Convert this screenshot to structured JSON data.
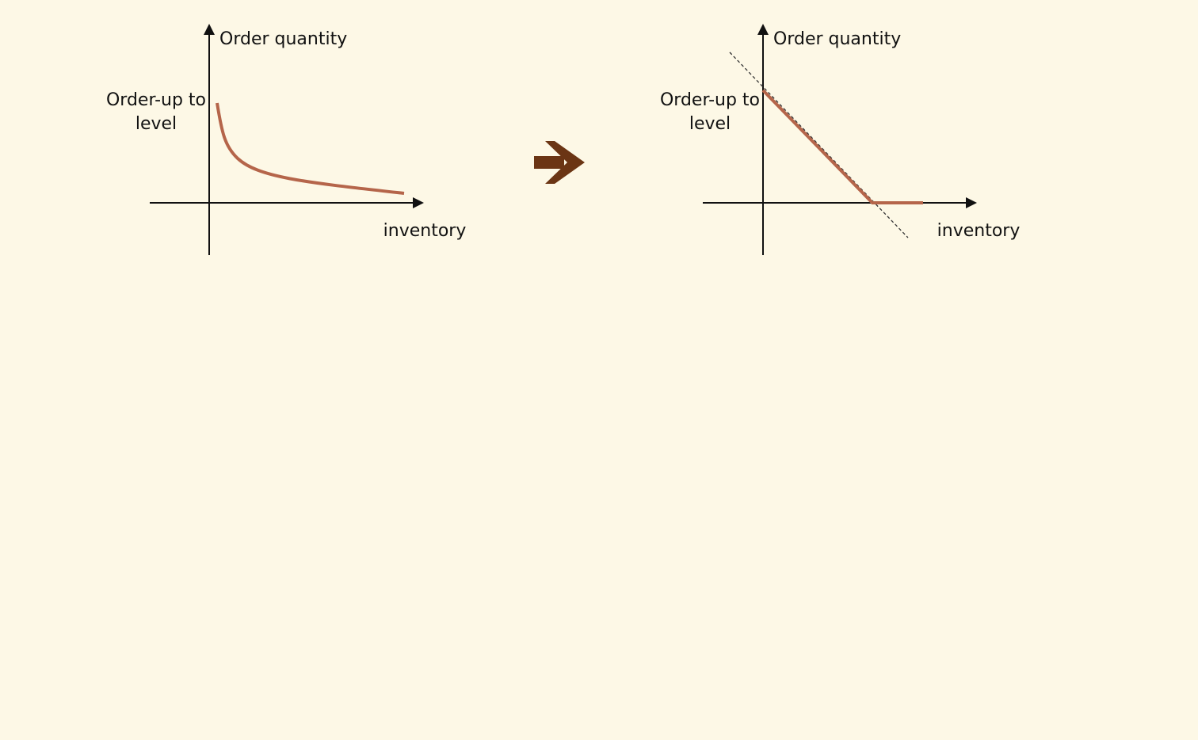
{
  "colors": {
    "background": "#fdf8e6",
    "curve": "#b5654a",
    "arrow": "#6b3514",
    "axis": "#111111",
    "dashed": "#333333"
  },
  "left_panel": {
    "y_axis_label": "Order quantity",
    "y_marker_label_line1": "Order-up to",
    "y_marker_label_line2": "level",
    "x_axis_label": "inventory"
  },
  "right_panel": {
    "y_axis_label": "Order quantity",
    "y_marker_label_line1": "Order-up to",
    "y_marker_label_line2": "level",
    "x_axis_label": "inventory"
  },
  "transition_icon": "right-arrow-icon"
}
